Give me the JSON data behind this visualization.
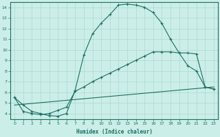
{
  "xlabel": "Humidex (Indice chaleur)",
  "bg_color": "#cceee8",
  "grid_color": "#aad8d2",
  "line_color": "#1a6e60",
  "xlim": [
    -0.5,
    23.5
  ],
  "ylim": [
    3.5,
    14.5
  ],
  "xticks": [
    0,
    1,
    2,
    3,
    4,
    5,
    6,
    7,
    8,
    9,
    10,
    11,
    12,
    13,
    14,
    15,
    16,
    17,
    18,
    19,
    20,
    21,
    22,
    23
  ],
  "yticks": [
    4,
    5,
    6,
    7,
    8,
    9,
    10,
    11,
    12,
    13,
    14
  ],
  "curve1_x": [
    0,
    1,
    2,
    3,
    4,
    5,
    6,
    7,
    8,
    9,
    10,
    11,
    12,
    13,
    14,
    15,
    16,
    17,
    18,
    19,
    20,
    21,
    22,
    23
  ],
  "curve1_y": [
    5.5,
    4.8,
    4.2,
    4.0,
    3.8,
    3.75,
    4.0,
    6.2,
    9.5,
    11.5,
    12.5,
    13.3,
    14.2,
    14.3,
    14.2,
    14.0,
    13.5,
    12.5,
    11.0,
    9.7,
    8.5,
    8.0,
    6.5,
    6.3
  ],
  "curve2_x": [
    0,
    1,
    2,
    3,
    4,
    5,
    6,
    7,
    8,
    9,
    10,
    11,
    12,
    13,
    14,
    15,
    16,
    17,
    18,
    19,
    20,
    21,
    22,
    23
  ],
  "curve2_y": [
    5.5,
    4.2,
    4.0,
    3.9,
    4.0,
    4.3,
    4.6,
    6.1,
    6.5,
    7.0,
    7.4,
    7.8,
    8.2,
    8.6,
    9.0,
    9.4,
    9.8,
    9.8,
    9.8,
    9.7,
    9.7,
    9.6,
    6.5,
    6.3
  ],
  "curve3_x": [
    0,
    23
  ],
  "curve3_y": [
    4.8,
    6.5
  ]
}
